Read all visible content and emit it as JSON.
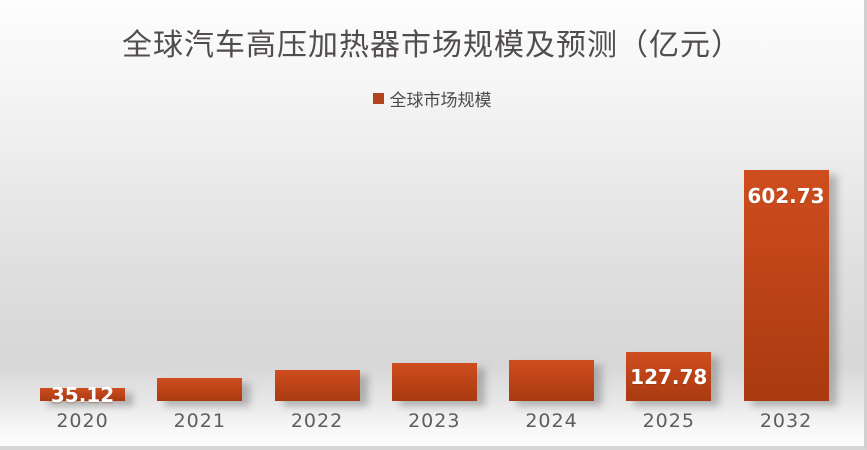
{
  "title": "全球汽车高压加热器市场规模及预测（亿元）",
  "legend": {
    "label": "全球市场规模"
  },
  "colors": {
    "bar_top": "#cf4d1e",
    "bar_bottom": "#a93a10",
    "legend_marker": "#b4421c",
    "title_text": "#514d4c",
    "axis_label_text": "#5d5d5d",
    "data_label_text": "#ffffff",
    "frame_border": "#d6d6d6"
  },
  "chart_data": {
    "type": "bar",
    "title": "全球汽车高压加热器市场规模及预测（亿元）",
    "series_name": "全球市场规模",
    "categories": [
      "2020",
      "2021",
      "2022",
      "2023",
      "2024",
      "2025",
      "2032"
    ],
    "values": [
      35.12,
      60,
      81,
      99,
      106,
      127.78,
      602.73
    ],
    "data_labels": [
      "35.12",
      "",
      "",
      "",
      "",
      "127.78",
      "602.73"
    ],
    "label_position": [
      "center",
      "",
      "",
      "",
      "",
      "center",
      "inside-top"
    ],
    "xlabel": "",
    "ylabel": "",
    "ylim": [
      0,
      630
    ],
    "grid": false,
    "y_axis_visible": false,
    "legend_position": "top-center"
  }
}
